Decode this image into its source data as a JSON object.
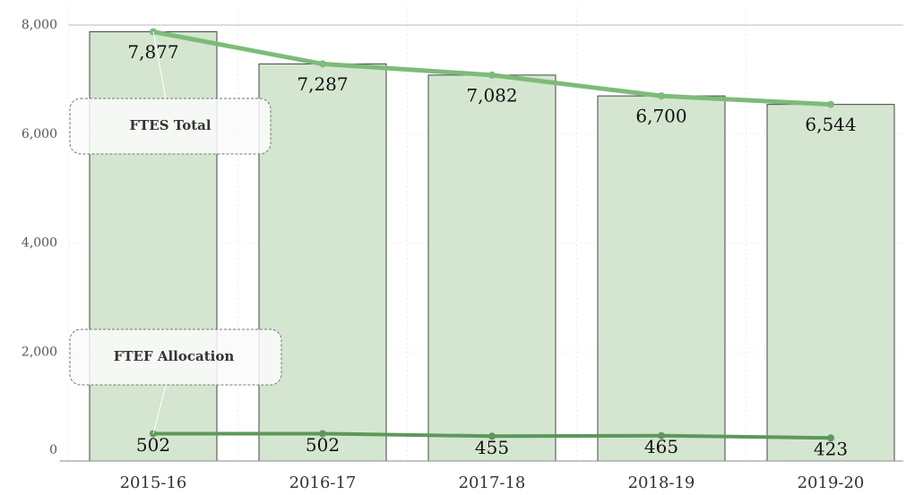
{
  "chart_data": {
    "type": "bar",
    "categories": [
      "2015-16",
      "2016-17",
      "2017-18",
      "2018-19",
      "2019-20"
    ],
    "series": [
      {
        "name": "FTES Total",
        "type": "bar",
        "color": "#d4e6d0",
        "line_color": "#7dbb78",
        "values": [
          7877,
          7287,
          7082,
          6700,
          6544
        ],
        "value_labels": [
          "7,877",
          "7,287",
          "7,082",
          "6,700",
          "6,544"
        ]
      },
      {
        "name": "FTEF Allocation",
        "type": "line",
        "color": "#5d985a",
        "values": [
          502,
          502,
          455,
          465,
          423
        ]
      }
    ],
    "ylim": [
      0,
      8000
    ],
    "yticks": [
      {
        "value": 0,
        "label": "0"
      },
      {
        "value": 2000,
        "label": "2,000"
      },
      {
        "value": 4000,
        "label": "4,000"
      },
      {
        "value": 6000,
        "label": "6,000"
      },
      {
        "value": 8000,
        "label": "8,000"
      }
    ],
    "grid": true
  }
}
